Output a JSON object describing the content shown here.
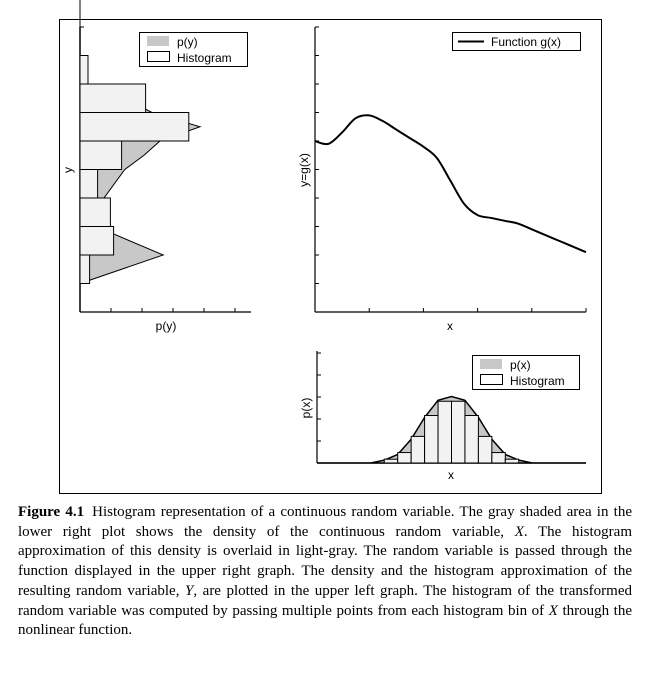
{
  "chart_data": [
    {
      "type": "area",
      "panel": "upper-left",
      "xlabel": "p(y)",
      "ylabel": "y",
      "orientation": "horizontal",
      "legend": {
        "placement": "top-right",
        "entries": [
          "p(y)",
          "Histogram"
        ]
      },
      "y_bins": [
        0.01,
        0.02,
        0.03,
        0.04,
        0.05,
        0.06,
        0.07,
        0.08
      ],
      "histogram_values": [
        0.06,
        0.21,
        0.19,
        0.11,
        0.26,
        0.68,
        0.41,
        0.05
      ],
      "density_curve": {
        "y": [
          0.0,
          0.01,
          0.02,
          0.03,
          0.04,
          0.05,
          0.055,
          0.06,
          0.065,
          0.07,
          0.075,
          0.08,
          0.09,
          1.0
        ],
        "value": [
          0.0,
          0.0,
          0.52,
          0.1,
          0.15,
          0.28,
          0.4,
          0.5,
          0.75,
          0.45,
          0.28,
          0.05,
          0.0,
          0.0
        ]
      },
      "grid": false
    },
    {
      "type": "line",
      "panel": "upper-right",
      "xlabel": "x",
      "ylabel": "y=g(x)",
      "legend": {
        "placement": "top-right",
        "entries": [
          "Function g(x)"
        ]
      },
      "series": [
        {
          "name": "Function g(x)",
          "x": [
            0,
            0.05,
            0.1,
            0.15,
            0.2,
            0.25,
            0.3,
            0.35,
            0.4,
            0.45,
            0.5,
            0.55,
            0.6,
            0.65,
            0.7,
            0.75,
            0.8,
            0.85,
            0.9,
            0.95,
            1.0
          ],
          "y": [
            0.6,
            0.59,
            0.63,
            0.68,
            0.69,
            0.67,
            0.64,
            0.61,
            0.58,
            0.54,
            0.46,
            0.38,
            0.34,
            0.33,
            0.32,
            0.31,
            0.29,
            0.27,
            0.25,
            0.23,
            0.21
          ]
        }
      ],
      "xlim": [
        0,
        1
      ],
      "ylim": [
        0,
        1
      ],
      "grid": false
    },
    {
      "type": "area",
      "panel": "lower-right",
      "xlabel": "x",
      "ylabel": "p(x)",
      "legend": {
        "placement": "top-right",
        "entries": [
          "p(x)",
          "Histogram"
        ]
      },
      "x_bins": [
        0.25,
        0.3,
        0.35,
        0.4,
        0.45,
        0.5,
        0.55,
        0.6,
        0.65,
        0.7
      ],
      "histogram_values": [
        0.04,
        0.11,
        0.28,
        0.5,
        0.65,
        0.65,
        0.5,
        0.28,
        0.11,
        0.04
      ],
      "density_curve": {
        "x": [
          0.0,
          0.2,
          0.25,
          0.3,
          0.35,
          0.4,
          0.45,
          0.5,
          0.55,
          0.6,
          0.65,
          0.7,
          0.75,
          0.8,
          1.0
        ],
        "value": [
          0.0,
          0.0,
          0.03,
          0.09,
          0.25,
          0.48,
          0.66,
          0.7,
          0.66,
          0.48,
          0.25,
          0.09,
          0.03,
          0.0,
          0.0
        ]
      },
      "xlim": [
        0,
        1
      ],
      "grid": false
    }
  ],
  "caption": {
    "label": "Figure 4.1",
    "segments": [
      {
        "text": "Histogram representation of a continuous random variable. The gray shaded area in the lower right plot shows the density of the continuous random variable, ",
        "italic": false
      },
      {
        "text": "X",
        "italic": true
      },
      {
        "text": ". The histogram approximation of this density is overlaid in light-gray. The random variable is passed through the function displayed in the upper right graph. The density and the histogram approximation of the resulting random variable, ",
        "italic": false
      },
      {
        "text": "Y",
        "italic": true
      },
      {
        "text": ", are plotted in the upper left graph. The histogram of the transformed random variable was computed by passing multiple points from each histogram bin of ",
        "italic": false
      },
      {
        "text": "X",
        "italic": true
      },
      {
        "text": " through the nonlinear function.",
        "italic": false
      }
    ]
  },
  "colors": {
    "density_fill": "#c8c8c8",
    "histogram_fill": "#f2f2f2",
    "stroke": "#000000"
  }
}
